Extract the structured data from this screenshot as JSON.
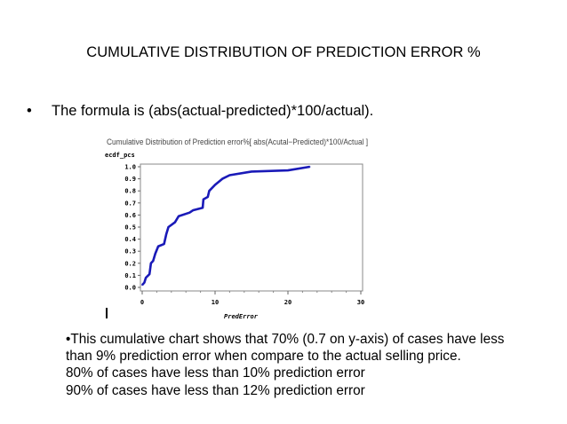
{
  "slide": {
    "title": "CUMULATIVE DISTRIBUTION OF PREDICTION ERROR %",
    "bullet_symbol": "•",
    "bullet_text": "The formula is (abs(actual-predicted)*100/actual).",
    "notes": [
      "•This cumulative chart shows that 70% (0.7 on y-axis) of cases have less than 9% prediction  error when compare to the actual selling price.",
      "80% of cases have less than 10% prediction error",
      "90% of cases have less than 12% prediction error"
    ]
  },
  "chart_data": {
    "type": "line",
    "title": "Cumulative Distribution of Prediction error%[ abs(Acutal−Predicted)*100/Actual ]",
    "xlabel": "PredError",
    "ylabel": "ecdf_pcs",
    "xlim": [
      0,
      30
    ],
    "ylim": [
      0,
      1
    ],
    "x_ticks": [
      "0",
      "10",
      "20",
      "30"
    ],
    "y_ticks": [
      "0.0",
      "0.1",
      "0.2",
      "0.3",
      "0.4",
      "0.5",
      "0.6",
      "0.7",
      "0.8",
      "0.9",
      "1.0"
    ],
    "series": [
      {
        "name": "ecdf_pcs",
        "color": "#1a1ab8",
        "x": [
          0,
          0.3,
          0.5,
          1,
          1.2,
          1.5,
          1.8,
          2.2,
          3,
          3.3,
          3.6,
          4.5,
          5,
          6.5,
          7,
          8.3,
          8.4,
          9,
          9.2,
          10,
          11,
          12,
          15,
          20,
          23
        ],
        "y": [
          0.02,
          0.04,
          0.08,
          0.11,
          0.2,
          0.22,
          0.28,
          0.34,
          0.36,
          0.44,
          0.5,
          0.54,
          0.59,
          0.62,
          0.64,
          0.66,
          0.73,
          0.75,
          0.8,
          0.85,
          0.9,
          0.93,
          0.96,
          0.97,
          1.0
        ]
      }
    ]
  }
}
